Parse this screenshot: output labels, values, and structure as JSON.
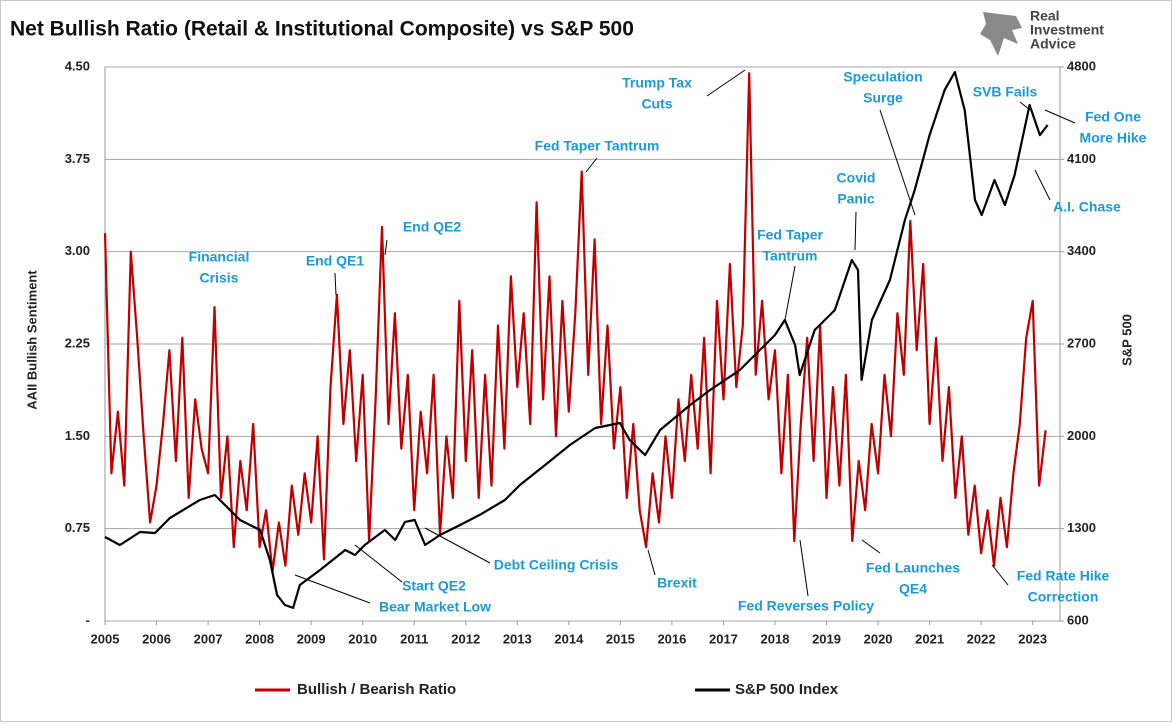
{
  "chart_data": {
    "type": "line",
    "title": "Net Bullish Ratio (Retail & Institutional Composite) vs S&P 500",
    "logo": [
      "Real",
      "Investment",
      "Advice"
    ],
    "y_label": "AAII Bullish Sentiment",
    "y2_label": "S&P 500",
    "xlim": [
      2005,
      2023.53
    ],
    "xticks": [
      2005,
      2006,
      2007,
      2008,
      2009,
      2010,
      2011,
      2012,
      2013,
      2014,
      2015,
      2016,
      2017,
      2018,
      2019,
      2020,
      2021,
      2022,
      2023
    ],
    "ylim": [
      0,
      4.5
    ],
    "yticks": [
      {
        "value": 0,
        "label": "-"
      },
      0.75,
      {
        "value": 1.5,
        "label": "1.50"
      },
      2.25,
      {
        "value": 3,
        "label": "3.00"
      },
      3.75,
      {
        "value": 4.5,
        "label": "4.50"
      }
    ],
    "y2lim": [
      600,
      4800
    ],
    "y2ticks": [
      600,
      1300,
      2000,
      2700,
      3400,
      4100,
      4800
    ],
    "grid": true,
    "series": [
      {
        "name": "Bullish / Bearish Ratio",
        "color": "#c00000",
        "x": [
          2005,
          2005.125,
          2005.25,
          2005.375,
          2005.5,
          2005.625,
          2005.75,
          2005.875,
          2006,
          2006.125,
          2006.25,
          2006.375,
          2006.5,
          2006.625,
          2006.75,
          2006.875,
          2007,
          2007.125,
          2007.25,
          2007.375,
          2007.5,
          2007.625,
          2007.75,
          2007.875,
          2008,
          2008.125,
          2008.25,
          2008.375,
          2008.5,
          2008.625,
          2008.75,
          2008.875,
          2009,
          2009.125,
          2009.25,
          2009.375,
          2009.5,
          2009.625,
          2009.75,
          2009.875,
          2010,
          2010.125,
          2010.25,
          2010.375,
          2010.5,
          2010.625,
          2010.75,
          2010.875,
          2011,
          2011.125,
          2011.25,
          2011.375,
          2011.5,
          2011.625,
          2011.75,
          2011.875,
          2012,
          2012.125,
          2012.25,
          2012.375,
          2012.5,
          2012.625,
          2012.75,
          2012.875,
          2013,
          2013.125,
          2013.25,
          2013.375,
          2013.5,
          2013.625,
          2013.75,
          2013.875,
          2014,
          2014.125,
          2014.25,
          2014.375,
          2014.5,
          2014.625,
          2014.75,
          2014.875,
          2015,
          2015.125,
          2015.25,
          2015.375,
          2015.5,
          2015.625,
          2015.75,
          2015.875,
          2016,
          2016.125,
          2016.25,
          2016.375,
          2016.5,
          2016.625,
          2016.75,
          2016.875,
          2017,
          2017.125,
          2017.25,
          2017.375,
          2017.5,
          2017.625,
          2017.75,
          2017.875,
          2018,
          2018.125,
          2018.25,
          2018.375,
          2018.5,
          2018.625,
          2018.75,
          2018.875,
          2019,
          2019.125,
          2019.25,
          2019.375,
          2019.5,
          2019.625,
          2019.75,
          2019.875,
          2020,
          2020.125,
          2020.25,
          2020.375,
          2020.5,
          2020.625,
          2020.75,
          2020.875,
          2021,
          2021.125,
          2021.25,
          2021.375,
          2021.5,
          2021.625,
          2021.75,
          2021.875,
          2022,
          2022.125,
          2022.25,
          2022.375,
          2022.5,
          2022.625,
          2022.75,
          2022.875,
          2023,
          2023.125,
          2023.25
        ],
        "values": [
          3.15,
          1.2,
          1.7,
          1.1,
          3.0,
          2.3,
          1.5,
          0.8,
          1.1,
          1.6,
          2.2,
          1.3,
          2.3,
          1.0,
          1.8,
          1.4,
          1.2,
          2.55,
          1.0,
          1.5,
          0.6,
          1.3,
          0.9,
          1.6,
          0.6,
          0.9,
          0.4,
          0.8,
          0.45,
          1.1,
          0.7,
          1.2,
          0.8,
          1.5,
          0.5,
          1.9,
          2.65,
          1.6,
          2.2,
          1.3,
          2.0,
          0.65,
          1.8,
          3.2,
          1.6,
          2.5,
          1.4,
          2.0,
          0.9,
          1.7,
          1.2,
          2.0,
          0.7,
          1.5,
          1.0,
          2.6,
          1.3,
          2.2,
          1.0,
          2.0,
          1.1,
          2.4,
          1.4,
          2.8,
          1.9,
          2.5,
          1.6,
          3.4,
          1.8,
          2.8,
          1.5,
          2.6,
          1.7,
          2.5,
          3.65,
          2.0,
          3.1,
          1.6,
          2.4,
          1.4,
          1.9,
          1.0,
          1.6,
          0.9,
          0.6,
          1.2,
          0.8,
          1.5,
          1.0,
          1.8,
          1.3,
          2.0,
          1.4,
          2.3,
          1.2,
          2.6,
          1.8,
          2.9,
          1.9,
          2.4,
          4.45,
          2.0,
          2.6,
          1.8,
          2.2,
          1.2,
          2.0,
          0.65,
          1.6,
          2.3,
          1.3,
          2.4,
          1.0,
          1.9,
          1.1,
          2.0,
          0.65,
          1.3,
          0.9,
          1.6,
          1.2,
          2.0,
          1.5,
          2.5,
          2.0,
          3.25,
          2.2,
          2.9,
          1.6,
          2.3,
          1.3,
          1.9,
          1.0,
          1.5,
          0.7,
          1.1,
          0.55,
          0.9,
          0.45,
          1.0,
          0.6,
          1.2,
          1.6,
          2.3,
          2.6,
          1.1,
          1.55
        ]
      },
      {
        "name": "S&P 500 Index",
        "color": "#000000",
        "axis": "y2",
        "x": [
          2005.0,
          2005.29,
          2005.68,
          2005.97,
          2006.26,
          2006.84,
          2007.13,
          2007.33,
          2007.62,
          2008.01,
          2008.2,
          2008.34,
          2008.49,
          2008.65,
          2008.78,
          2009.17,
          2009.66,
          2009.85,
          2010.04,
          2010.43,
          2010.63,
          2010.82,
          2011.01,
          2011.21,
          2011.5,
          2011.89,
          2012.27,
          2012.76,
          2013.05,
          2013.54,
          2014.02,
          2014.51,
          2014.99,
          2015.18,
          2015.48,
          2015.77,
          2016.35,
          2016.74,
          2017.32,
          2017.71,
          2018.0,
          2018.19,
          2018.39,
          2018.48,
          2018.77,
          2019.16,
          2019.49,
          2019.61,
          2019.68,
          2019.88,
          2020.23,
          2020.52,
          2020.71,
          2021.0,
          2021.29,
          2021.49,
          2021.68,
          2021.88,
          2022.01,
          2022.26,
          2022.46,
          2022.65,
          2022.94,
          2023.14,
          2023.29
        ],
        "values": [
          1237,
          1176,
          1275,
          1267,
          1381,
          1517,
          1555,
          1479,
          1366,
          1290,
          1062,
          797,
          721,
          699,
          873,
          986,
          1138,
          1100,
          1176,
          1290,
          1214,
          1351,
          1366,
          1176,
          1252,
          1328,
          1404,
          1517,
          1631,
          1783,
          1934,
          2063,
          2101,
          1972,
          1858,
          2048,
          2237,
          2351,
          2503,
          2655,
          2768,
          2882,
          2692,
          2465,
          2806,
          2957,
          3337,
          3261,
          2427,
          2882,
          3185,
          3640,
          3867,
          4284,
          4625,
          4761,
          4473,
          3792,
          3678,
          3943,
          3754,
          3981,
          4512,
          4284,
          4360
        ]
      }
    ],
    "annotations": [
      [
        "Financial",
        "Crisis"
      ],
      [
        "End QE1"
      ],
      [
        "End QE2"
      ],
      [
        "Fed Taper Tantrum"
      ],
      [
        "Trump Tax",
        "Cuts"
      ],
      [
        "Speculation",
        "Surge"
      ],
      [
        "SVB Fails"
      ],
      [
        "Fed One",
        "More Hike"
      ],
      [
        "Covid",
        "Panic"
      ],
      [
        "Fed Taper",
        "Tantrum"
      ],
      [
        "A.I. Chase"
      ],
      [
        "Debt Ceiling Crisis"
      ],
      [
        "Start QE2"
      ],
      [
        "Bear Market Low"
      ],
      [
        "Brexit"
      ],
      [
        "Fed Reverses Policy"
      ],
      [
        "Fed Launches",
        "QE4"
      ],
      [
        "Fed Rate Hike",
        "Correction"
      ]
    ]
  }
}
